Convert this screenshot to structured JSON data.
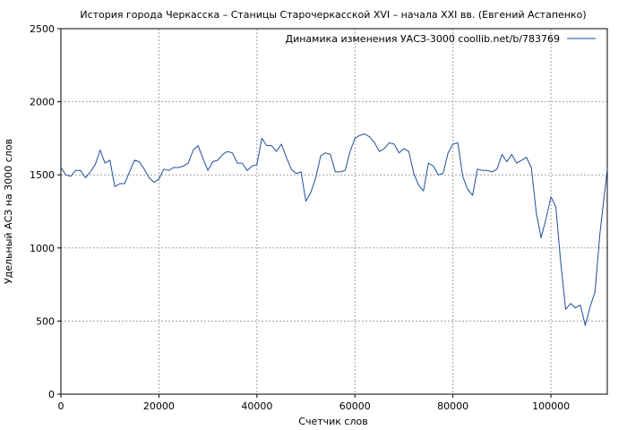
{
  "chart_data": {
    "type": "line",
    "title": "История города Черкасска – Станицы Старочеркасской XVI – начала XXI вв. (Евгений Астапенко)",
    "xlabel": "Счетчик слов",
    "ylabel": "Удельный АСЗ на 3000 слов",
    "xlim": [
      0,
      111500
    ],
    "ylim": [
      0,
      2500
    ],
    "xticks": [
      0,
      20000,
      40000,
      60000,
      80000,
      100000
    ],
    "yticks": [
      0,
      500,
      1000,
      1500,
      2000,
      2500
    ],
    "grid": true,
    "legend_position": "top-right",
    "colors": {
      "line": "#1f4e9c",
      "grid": "#a0a0a0",
      "axis": "#000000"
    },
    "series": [
      {
        "name": "Динамика изменения УАСЗ-3000 coollib.net/b/783769",
        "x": [
          0,
          1000,
          2000,
          3000,
          4000,
          5000,
          6000,
          7000,
          8000,
          9000,
          10000,
          11000,
          12000,
          13000,
          14000,
          15000,
          16000,
          17000,
          18000,
          19000,
          20000,
          21000,
          22000,
          23000,
          24000,
          25000,
          26000,
          27000,
          28000,
          29000,
          30000,
          31000,
          32000,
          33000,
          34000,
          35000,
          36000,
          37000,
          38000,
          39000,
          40000,
          41000,
          42000,
          43000,
          44000,
          45000,
          46000,
          47000,
          48000,
          49000,
          50000,
          51000,
          52000,
          53000,
          54000,
          55000,
          56000,
          57000,
          58000,
          59000,
          60000,
          61000,
          62000,
          63000,
          64000,
          65000,
          66000,
          67000,
          68000,
          69000,
          70000,
          71000,
          72000,
          73000,
          74000,
          75000,
          76000,
          77000,
          78000,
          79000,
          80000,
          81000,
          82000,
          83000,
          84000,
          85000,
          86000,
          87000,
          88000,
          89000,
          90000,
          91000,
          92000,
          93000,
          94000,
          95000,
          96000,
          97000,
          98000,
          99000,
          100000,
          101000,
          102000,
          103000,
          104000,
          105000,
          106000,
          107000,
          108000,
          109000,
          110000,
          111500
        ],
        "values": [
          1550,
          1500,
          1490,
          1530,
          1530,
          1480,
          1520,
          1570,
          1670,
          1580,
          1600,
          1420,
          1440,
          1440,
          1520,
          1600,
          1590,
          1540,
          1480,
          1450,
          1470,
          1540,
          1530,
          1550,
          1550,
          1560,
          1580,
          1670,
          1700,
          1610,
          1530,
          1590,
          1600,
          1640,
          1660,
          1650,
          1580,
          1580,
          1530,
          1560,
          1570,
          1750,
          1700,
          1700,
          1660,
          1710,
          1620,
          1540,
          1510,
          1520,
          1320,
          1380,
          1480,
          1630,
          1650,
          1640,
          1520,
          1520,
          1530,
          1660,
          1750,
          1770,
          1780,
          1760,
          1720,
          1660,
          1680,
          1720,
          1710,
          1650,
          1680,
          1660,
          1510,
          1430,
          1390,
          1580,
          1560,
          1500,
          1510,
          1650,
          1710,
          1720,
          1490,
          1400,
          1360,
          1540,
          1530,
          1530,
          1520,
          1540,
          1640,
          1590,
          1640,
          1580,
          1600,
          1620,
          1550,
          1240,
          1070,
          1200,
          1350,
          1280,
          900,
          580,
          620,
          590,
          610,
          470,
          600,
          700,
          1100,
          1540
        ]
      }
    ]
  }
}
